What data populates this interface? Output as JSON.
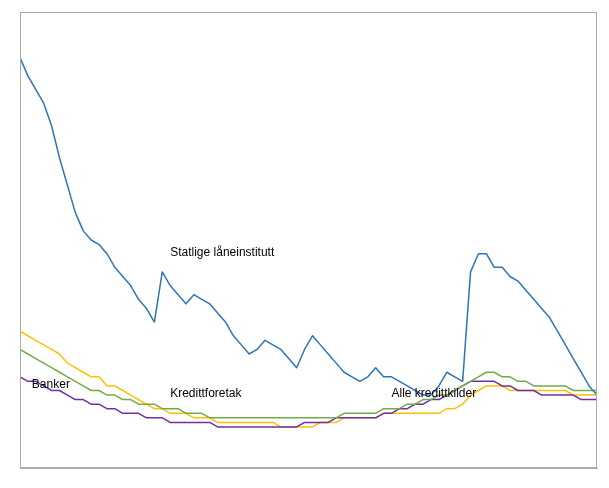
{
  "chart_data": {
    "type": "line",
    "x": [
      0,
      1,
      2,
      3,
      4,
      5,
      6,
      7,
      8,
      9,
      10,
      11,
      12,
      13,
      14,
      15,
      16,
      17,
      18,
      19,
      20,
      21,
      22,
      23,
      24,
      25,
      26,
      27,
      28,
      29,
      30,
      31,
      32,
      33,
      34,
      35,
      36,
      37,
      38,
      39,
      40,
      41,
      42,
      43,
      44,
      45,
      46,
      47,
      48,
      49,
      50,
      51,
      52,
      53,
      54,
      55,
      56,
      57,
      58,
      59,
      60,
      61,
      62,
      63,
      64,
      65,
      66,
      67,
      68,
      69,
      70,
      71,
      72,
      73
    ],
    "series": [
      {
        "name": "Statlige låneinstitutt",
        "color": "#2E75B6",
        "values": [
          90,
          86,
          83,
          80,
          75,
          68,
          62,
          56,
          52,
          50,
          49,
          47,
          44,
          42,
          40,
          37,
          35,
          32,
          43,
          40,
          38,
          36,
          38,
          37,
          36,
          34,
          32,
          29,
          27,
          25,
          26,
          28,
          27,
          26,
          24,
          22,
          26,
          29,
          27,
          25,
          23,
          21,
          20,
          19,
          20,
          22,
          20,
          20,
          19,
          18,
          17,
          16,
          16,
          18,
          21,
          20,
          19,
          43,
          47,
          47,
          44,
          44,
          42,
          41,
          39,
          37,
          35,
          33,
          30,
          27,
          24,
          21,
          18,
          16
        ]
      },
      {
        "name": "Kredittforetak",
        "color": "#70AD47",
        "values": [
          26,
          25,
          24,
          23,
          22,
          21,
          20,
          19,
          18,
          17,
          17,
          16,
          16,
          15,
          15,
          14,
          14,
          14,
          13,
          13,
          13,
          12,
          12,
          12,
          11,
          11,
          11,
          11,
          11,
          11,
          11,
          11,
          11,
          11,
          11,
          11,
          11,
          11,
          11,
          11,
          11,
          12,
          12,
          12,
          12,
          12,
          13,
          13,
          13,
          14,
          14,
          15,
          15,
          16,
          16,
          17,
          18,
          19,
          20,
          21,
          21,
          20,
          20,
          19,
          19,
          18,
          18,
          18,
          18,
          18,
          17,
          17,
          17,
          17
        ]
      },
      {
        "name": "Banker",
        "color": "#7030A0",
        "values": [
          20,
          19,
          19,
          18,
          17,
          17,
          16,
          15,
          15,
          14,
          14,
          13,
          13,
          12,
          12,
          12,
          11,
          11,
          11,
          10,
          10,
          10,
          10,
          10,
          10,
          9,
          9,
          9,
          9,
          9,
          9,
          9,
          9,
          9,
          9,
          9,
          10,
          10,
          10,
          10,
          11,
          11,
          11,
          11,
          11,
          11,
          12,
          12,
          13,
          13,
          14,
          14,
          15,
          15,
          16,
          17,
          18,
          19,
          19,
          19,
          19,
          18,
          18,
          17,
          17,
          17,
          16,
          16,
          16,
          16,
          16,
          15,
          15,
          15
        ]
      },
      {
        "name": "Alle kredittkilder",
        "color": "#FFC000",
        "values": [
          30,
          29,
          28,
          27,
          26,
          25,
          23,
          22,
          21,
          20,
          20,
          18,
          18,
          17,
          16,
          15,
          14,
          13,
          13,
          12,
          12,
          12,
          11,
          11,
          11,
          10,
          10,
          10,
          10,
          10,
          10,
          10,
          10,
          9,
          9,
          9,
          9,
          9,
          10,
          10,
          10,
          11,
          11,
          11,
          11,
          11,
          12,
          12,
          12,
          12,
          12,
          12,
          12,
          12,
          13,
          13,
          14,
          16,
          17,
          18,
          18,
          18,
          17,
          17,
          17,
          17,
          17,
          17,
          17,
          17,
          16,
          16,
          16,
          16
        ]
      }
    ],
    "xlim": [
      0,
      73
    ],
    "ylim": [
      0,
      100
    ],
    "tick_labels": false,
    "grid": false,
    "annotations": [
      {
        "text": "Statlige låneinstitutt",
        "x": 19,
        "y": 46
      },
      {
        "text": "Kredittforetak",
        "x": 19,
        "y": 15
      },
      {
        "text": "Banker",
        "x": 1.5,
        "y": 17
      },
      {
        "text": "Alle kredittkilder",
        "x": 47,
        "y": 15
      }
    ]
  }
}
